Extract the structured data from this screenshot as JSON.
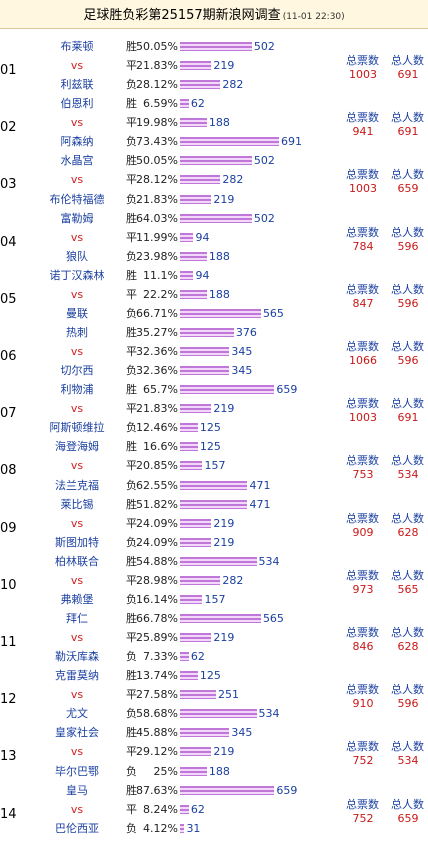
{
  "title": "足球胜负彩第25157期新浪网调查",
  "timestamp": "(11-01 22:30)",
  "labels": {
    "total_votes": "总票数",
    "total_people": "总人数",
    "win": "胜",
    "draw": "平",
    "lose": "负",
    "vs": "vs"
  },
  "matches": [
    {
      "no": "01",
      "home": "布莱顿",
      "away": "利兹联",
      "win_pct": "50.05%",
      "win": 502,
      "draw_pct": "21.83%",
      "draw": 219,
      "lose_pct": "28.12%",
      "lose": 282,
      "votes": "1003",
      "people": "691"
    },
    {
      "no": "02",
      "home": "伯恩利",
      "away": "阿森纳",
      "win_pct": "6.59%",
      "win": 62,
      "draw_pct": "19.98%",
      "draw": 188,
      "lose_pct": "73.43%",
      "lose": 691,
      "votes": "941",
      "people": "691"
    },
    {
      "no": "03",
      "home": "水晶宫",
      "away": "布伦特福德",
      "win_pct": "50.05%",
      "win": 502,
      "draw_pct": "28.12%",
      "draw": 282,
      "lose_pct": "21.83%",
      "lose": 219,
      "votes": "1003",
      "people": "659"
    },
    {
      "no": "04",
      "home": "富勒姆",
      "away": "狼队",
      "win_pct": "64.03%",
      "win": 502,
      "draw_pct": "11.99%",
      "draw": 94,
      "lose_pct": "23.98%",
      "lose": 188,
      "votes": "784",
      "people": "596"
    },
    {
      "no": "05",
      "home": "诺丁汉森林",
      "away": "曼联",
      "win_pct": "11.1%",
      "win": 94,
      "draw_pct": "22.2%",
      "draw": 188,
      "lose_pct": "66.71%",
      "lose": 565,
      "votes": "847",
      "people": "596"
    },
    {
      "no": "06",
      "home": "热刺",
      "away": "切尔西",
      "win_pct": "35.27%",
      "win": 376,
      "draw_pct": "32.36%",
      "draw": 345,
      "lose_pct": "32.36%",
      "lose": 345,
      "votes": "1066",
      "people": "596"
    },
    {
      "no": "07",
      "home": "利物浦",
      "away": "阿斯顿维拉",
      "win_pct": "65.7%",
      "win": 659,
      "draw_pct": "21.83%",
      "draw": 219,
      "lose_pct": "12.46%",
      "lose": 125,
      "votes": "1003",
      "people": "691"
    },
    {
      "no": "08",
      "home": "海登海姆",
      "away": "法兰克福",
      "win_pct": "16.6%",
      "win": 125,
      "draw_pct": "20.85%",
      "draw": 157,
      "lose_pct": "62.55%",
      "lose": 471,
      "votes": "753",
      "people": "534"
    },
    {
      "no": "09",
      "home": "莱比锡",
      "away": "斯图加特",
      "win_pct": "51.82%",
      "win": 471,
      "draw_pct": "24.09%",
      "draw": 219,
      "lose_pct": "24.09%",
      "lose": 219,
      "votes": "909",
      "people": "628"
    },
    {
      "no": "10",
      "home": "柏林联合",
      "away": "弗赖堡",
      "win_pct": "54.88%",
      "win": 534,
      "draw_pct": "28.98%",
      "draw": 282,
      "lose_pct": "16.14%",
      "lose": 157,
      "votes": "973",
      "people": "565"
    },
    {
      "no": "11",
      "home": "拜仁",
      "away": "勒沃库森",
      "win_pct": "66.78%",
      "win": 565,
      "draw_pct": "25.89%",
      "draw": 219,
      "lose_pct": "7.33%",
      "lose": 62,
      "votes": "846",
      "people": "628"
    },
    {
      "no": "12",
      "home": "克雷莫纳",
      "away": "尤文",
      "win_pct": "13.74%",
      "win": 125,
      "draw_pct": "27.58%",
      "draw": 251,
      "lose_pct": "58.68%",
      "lose": 534,
      "votes": "910",
      "people": "596"
    },
    {
      "no": "13",
      "home": "皇家社会",
      "away": "毕尔巴鄂",
      "win_pct": "45.88%",
      "win": 345,
      "draw_pct": "29.12%",
      "draw": 219,
      "lose_pct": "25%",
      "lose": 188,
      "votes": "752",
      "people": "534"
    },
    {
      "no": "14",
      "home": "皇马",
      "away": "巴伦西亚",
      "win_pct": "87.63%",
      "win": 659,
      "draw_pct": "8.24%",
      "draw": 62,
      "lose_pct": "4.12%",
      "lose": 31,
      "votes": "752",
      "people": "659"
    }
  ]
}
